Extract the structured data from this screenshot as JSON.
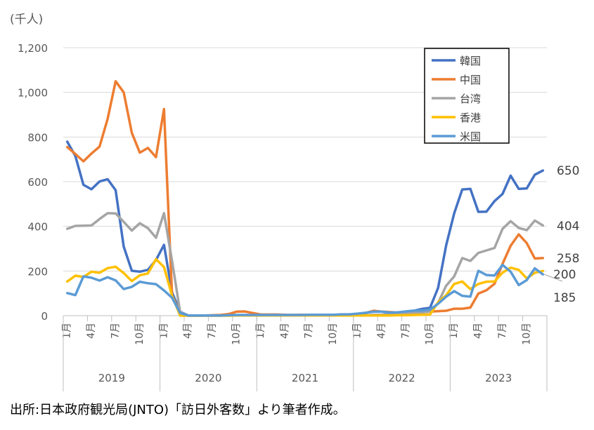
{
  "chart_data": {
    "type": "line",
    "unit_label": "(千人)",
    "ylim": [
      0,
      1200
    ],
    "yticks": [
      0,
      200,
      400,
      600,
      800,
      1000,
      1200
    ],
    "ytick_labels": [
      "0",
      "200",
      "400",
      "600",
      "800",
      "1,000",
      "1,200"
    ],
    "month_ticks": [
      "1月",
      "4月",
      "7月",
      "10月",
      "1月",
      "4月",
      "7月",
      "10月",
      "1月",
      "4月",
      "7月",
      "10月",
      "1月",
      "4月",
      "7月",
      "10月",
      "1月",
      "4月",
      "7月",
      "10月"
    ],
    "years": [
      "2019",
      "2020",
      "2021",
      "2022",
      "2023"
    ],
    "grid": true,
    "legend_position": "top-right",
    "months_count": 60,
    "series": [
      {
        "name": "韓国",
        "color": "#4472C4",
        "values": [
          779,
          715,
          586,
          566,
          601,
          611,
          562,
          309,
          201,
          197,
          205,
          249,
          317,
          104,
          17,
          1,
          1,
          1,
          1,
          1,
          1,
          1,
          1,
          1,
          1,
          1,
          1,
          1,
          1,
          1,
          1,
          1,
          1,
          1,
          1,
          1,
          1,
          2,
          3,
          4,
          6,
          7,
          12,
          22,
          30,
          35,
          124,
          315,
          458,
          565,
          568,
          465,
          466,
          513,
          545,
          627,
          568,
          570,
          631,
          650
        ],
        "end_label": "650"
      },
      {
        "name": "中国",
        "color": "#ED7D31",
        "values": [
          755,
          724,
          691,
          726,
          757,
          881,
          1050,
          1000,
          819,
          730,
          751,
          710,
          925,
          88,
          11,
          0,
          0,
          1,
          2,
          3,
          7,
          18,
          19,
          12,
          5,
          5,
          5,
          4,
          3,
          4,
          4,
          4,
          3,
          3,
          3,
          2,
          6,
          12,
          22,
          18,
          16,
          14,
          13,
          14,
          16,
          18,
          20,
          22,
          31,
          31,
          36,
          99,
          114,
          143,
          232,
          313,
          364,
          325,
          256,
          258
        ],
        "end_label": "258"
      },
      {
        "name": "台湾",
        "color": "#A5A5A5",
        "values": [
          389,
          402,
          403,
          404,
          433,
          459,
          458,
          420,
          381,
          414,
          392,
          349,
          459,
          244,
          15,
          0,
          0,
          0,
          0,
          0,
          1,
          1,
          1,
          1,
          1,
          1,
          1,
          1,
          1,
          1,
          1,
          1,
          1,
          1,
          1,
          1,
          1,
          2,
          3,
          4,
          5,
          7,
          9,
          12,
          14,
          18,
          57,
          134,
          176,
          258,
          245,
          281,
          292,
          303,
          389,
          423,
          393,
          383,
          426,
          404
        ],
        "end_label": "404"
      },
      {
        "name": "香港",
        "color": "#FFC000",
        "values": [
          153,
          179,
          173,
          197,
          192,
          213,
          219,
          191,
          155,
          181,
          189,
          253,
          218,
          89,
          0,
          0,
          0,
          0,
          0,
          0,
          0,
          1,
          1,
          1,
          1,
          1,
          1,
          1,
          1,
          1,
          1,
          1,
          1,
          1,
          1,
          1,
          1,
          1,
          1,
          1,
          1,
          2,
          2,
          3,
          4,
          5,
          60,
          91,
          142,
          153,
          119,
          142,
          152,
          153,
          193,
          215,
          205,
          167,
          192,
          200
        ],
        "end_label": "200"
      },
      {
        "name": "米国",
        "color": "#5B9BD5",
        "values": [
          101,
          92,
          176,
          170,
          157,
          172,
          158,
          119,
          129,
          152,
          145,
          141,
          113,
          80,
          12,
          1,
          1,
          1,
          1,
          1,
          2,
          3,
          3,
          3,
          3,
          3,
          3,
          3,
          3,
          3,
          4,
          4,
          4,
          4,
          6,
          6,
          9,
          13,
          18,
          18,
          14,
          15,
          19,
          23,
          23,
          27,
          53,
          85,
          110,
          89,
          85,
          201,
          182,
          180,
          227,
          197,
          137,
          159,
          212,
          185
        ],
        "end_label": "185"
      }
    ]
  },
  "source_note": "出所:日本政府観光局(JNTO)「訪日外客数」より筆者作成。"
}
